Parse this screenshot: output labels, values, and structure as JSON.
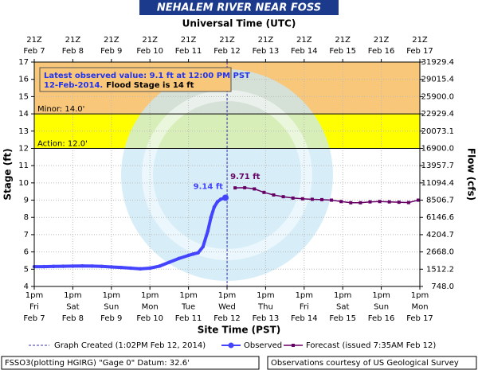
{
  "chart_data": {
    "type": "hydrograph",
    "title": "NEHALEM RIVER NEAR FOSS",
    "x2_title": "Universal Time (UTC)",
    "x_title": "Site Time (PST)",
    "y_title": "Stage (ft)",
    "y2_title": "Flow (cfs)",
    "xlim": [
      "Feb 7 13:00",
      "Feb 17 13:00"
    ],
    "x2lim": [
      "Feb 7 21:00",
      "Feb 17 21:00"
    ],
    "ylim": [
      4,
      17
    ],
    "yticks": [
      4,
      5,
      6,
      7,
      8,
      9,
      10,
      11,
      12,
      13,
      14,
      15,
      16,
      17
    ],
    "y2ticks": [
      {
        "value": 748,
        "label": "748.0"
      },
      {
        "value": 1512.2,
        "label": "1512.2"
      },
      {
        "value": 2668,
        "label": "2668.0"
      },
      {
        "value": 4204.7,
        "label": "4204.7"
      },
      {
        "value": 6146.6,
        "label": "6146.6"
      },
      {
        "value": 8506.7,
        "label": "8506.7"
      },
      {
        "value": 11094.4,
        "label": "11094.4"
      },
      {
        "value": 13957.7,
        "label": "13957.7"
      },
      {
        "value": 16900,
        "label": "16900.0"
      },
      {
        "value": 20073.1,
        "label": "20073.1"
      },
      {
        "value": 22929.4,
        "label": "22929.4"
      },
      {
        "value": 25900,
        "label": "25900.0"
      },
      {
        "value": 29015.4,
        "label": "29015.4"
      },
      {
        "value": 31929.4,
        "label": "31929.4"
      }
    ],
    "xticks": [
      {
        "value": "Feb 7 13:00",
        "label": [
          "1pm",
          "Fri",
          "Feb 7"
        ]
      },
      {
        "value": "Feb 8 13:00",
        "label": [
          "1pm",
          "Sat",
          "Feb 8"
        ]
      },
      {
        "value": "Feb 9 13:00",
        "label": [
          "1pm",
          "Sun",
          "Feb 9"
        ]
      },
      {
        "value": "Feb 10 13:00",
        "label": [
          "1pm",
          "Mon",
          "Feb 10"
        ]
      },
      {
        "value": "Feb 11 13:00",
        "label": [
          "1pm",
          "Tue",
          "Feb 11"
        ]
      },
      {
        "value": "Feb 12 13:00",
        "label": [
          "1pm",
          "Wed",
          "Feb 12"
        ]
      },
      {
        "value": "Feb 13 13:00",
        "label": [
          "1pm",
          "Thu",
          "Feb 13"
        ]
      },
      {
        "value": "Feb 14 13:00",
        "label": [
          "1pm",
          "Fri",
          "Feb 14"
        ]
      },
      {
        "value": "Feb 15 13:00",
        "label": [
          "1pm",
          "Sat",
          "Feb 15"
        ]
      },
      {
        "value": "Feb 16 13:00",
        "label": [
          "1pm",
          "Sun",
          "Feb 16"
        ]
      },
      {
        "value": "Feb 17 13:00",
        "label": [
          "1pm",
          "Mon",
          "Feb 17"
        ]
      }
    ],
    "x2ticks": [
      {
        "value": "Feb 7 21:00",
        "label": [
          "21Z",
          "Feb 7"
        ]
      },
      {
        "value": "Feb 8 21:00",
        "label": [
          "21Z",
          "Feb 8"
        ]
      },
      {
        "value": "Feb 9 21:00",
        "label": [
          "21Z",
          "Feb 9"
        ]
      },
      {
        "value": "Feb 10 21:00",
        "label": [
          "21Z",
          "Feb 10"
        ]
      },
      {
        "value": "Feb 11 21:00",
        "label": [
          "21Z",
          "Feb 11"
        ]
      },
      {
        "value": "Feb 12 21:00",
        "label": [
          "21Z",
          "Feb 12"
        ]
      },
      {
        "value": "Feb 13 21:00",
        "label": [
          "21Z",
          "Feb 13"
        ]
      },
      {
        "value": "Feb 14 21:00",
        "label": [
          "21Z",
          "Feb 14"
        ]
      },
      {
        "value": "Feb 15 21:00",
        "label": [
          "21Z",
          "Feb 15"
        ]
      },
      {
        "value": "Feb 16 21:00",
        "label": [
          "21Z",
          "Feb 16"
        ]
      },
      {
        "value": "Feb 17 21:00",
        "label": [
          "21Z",
          "Feb 17"
        ]
      }
    ],
    "grid": true,
    "thresholds": [
      {
        "name": "Action",
        "value": 12,
        "label": "Action: 12.0'",
        "color": "#ffff00"
      },
      {
        "name": "Minor",
        "value": 14,
        "label": "Minor: 14.0'",
        "color": "#f8c77a"
      }
    ],
    "created": {
      "x": "Feb 12 13:02",
      "label": "Graph Created (1:02PM Feb 12, 2014)",
      "color": "#3333aa"
    },
    "series": [
      {
        "name": "Observed",
        "color": "#4444ff",
        "x": [
          "Feb 7 13:00",
          "Feb 7 19:00",
          "Feb 8 01:00",
          "Feb 8 07:00",
          "Feb 8 13:00",
          "Feb 8 19:00",
          "Feb 9 01:00",
          "Feb 9 07:00",
          "Feb 9 13:00",
          "Feb 9 19:00",
          "Feb 10 01:00",
          "Feb 10 07:00",
          "Feb 10 13:00",
          "Feb 10 19:00",
          "Feb 11 01:00",
          "Feb 11 07:00",
          "Feb 11 13:00",
          "Feb 11 16:00",
          "Feb 11 19:00",
          "Feb 11 22:00",
          "Feb 12 01:00",
          "Feb 12 03:00",
          "Feb 12 05:00",
          "Feb 12 07:00",
          "Feb 12 09:00",
          "Feb 12 12:00"
        ],
        "values": [
          5.15,
          5.15,
          5.16,
          5.17,
          5.18,
          5.19,
          5.18,
          5.16,
          5.13,
          5.1,
          5.06,
          5.02,
          5.06,
          5.18,
          5.4,
          5.62,
          5.8,
          5.88,
          5.95,
          6.3,
          7.2,
          8.0,
          8.6,
          8.9,
          9.05,
          9.14
        ],
        "value_labels": [
          null,
          null,
          null,
          null,
          null,
          null,
          null,
          null,
          null,
          null,
          null,
          null,
          null,
          null,
          null,
          null,
          null,
          null,
          null,
          null,
          null,
          null,
          null,
          null,
          null,
          "9.14 ft"
        ]
      },
      {
        "name": "Forecast (issued 7:35AM Feb 12)",
        "color": "#660066",
        "x": [
          "Feb 12 18:00",
          "Feb 13 00:00",
          "Feb 13 06:00",
          "Feb 13 12:00",
          "Feb 13 18:00",
          "Feb 14 00:00",
          "Feb 14 06:00",
          "Feb 14 12:00",
          "Feb 14 18:00",
          "Feb 15 00:00",
          "Feb 15 06:00",
          "Feb 15 12:00",
          "Feb 15 18:00",
          "Feb 16 00:00",
          "Feb 16 06:00",
          "Feb 16 12:00",
          "Feb 16 18:00",
          "Feb 17 00:00",
          "Feb 17 06:00",
          "Feb 17 12:00"
        ],
        "values": [
          9.71,
          9.72,
          9.65,
          9.45,
          9.3,
          9.2,
          9.12,
          9.08,
          9.05,
          9.03,
          9.0,
          8.92,
          8.85,
          8.85,
          8.9,
          8.92,
          8.9,
          8.88,
          8.86,
          9.0
        ],
        "value_labels": [
          "9.71 ft",
          null,
          null,
          null,
          null,
          null,
          null,
          null,
          null,
          null,
          null,
          null,
          null,
          null,
          null,
          null,
          null,
          null,
          null,
          null
        ]
      }
    ],
    "annotation": {
      "line1": "Latest observed value: 9.1 ft at 12:00 PM PST",
      "date": "12-Feb-2014.",
      "flood": "Flood Stage is 14 ft"
    },
    "footer": {
      "left": "FSSO3(plotting HGIRG) \"Gage 0\" Datum: 32.6'",
      "right": "Observations courtesy of US Geological Survey"
    }
  }
}
